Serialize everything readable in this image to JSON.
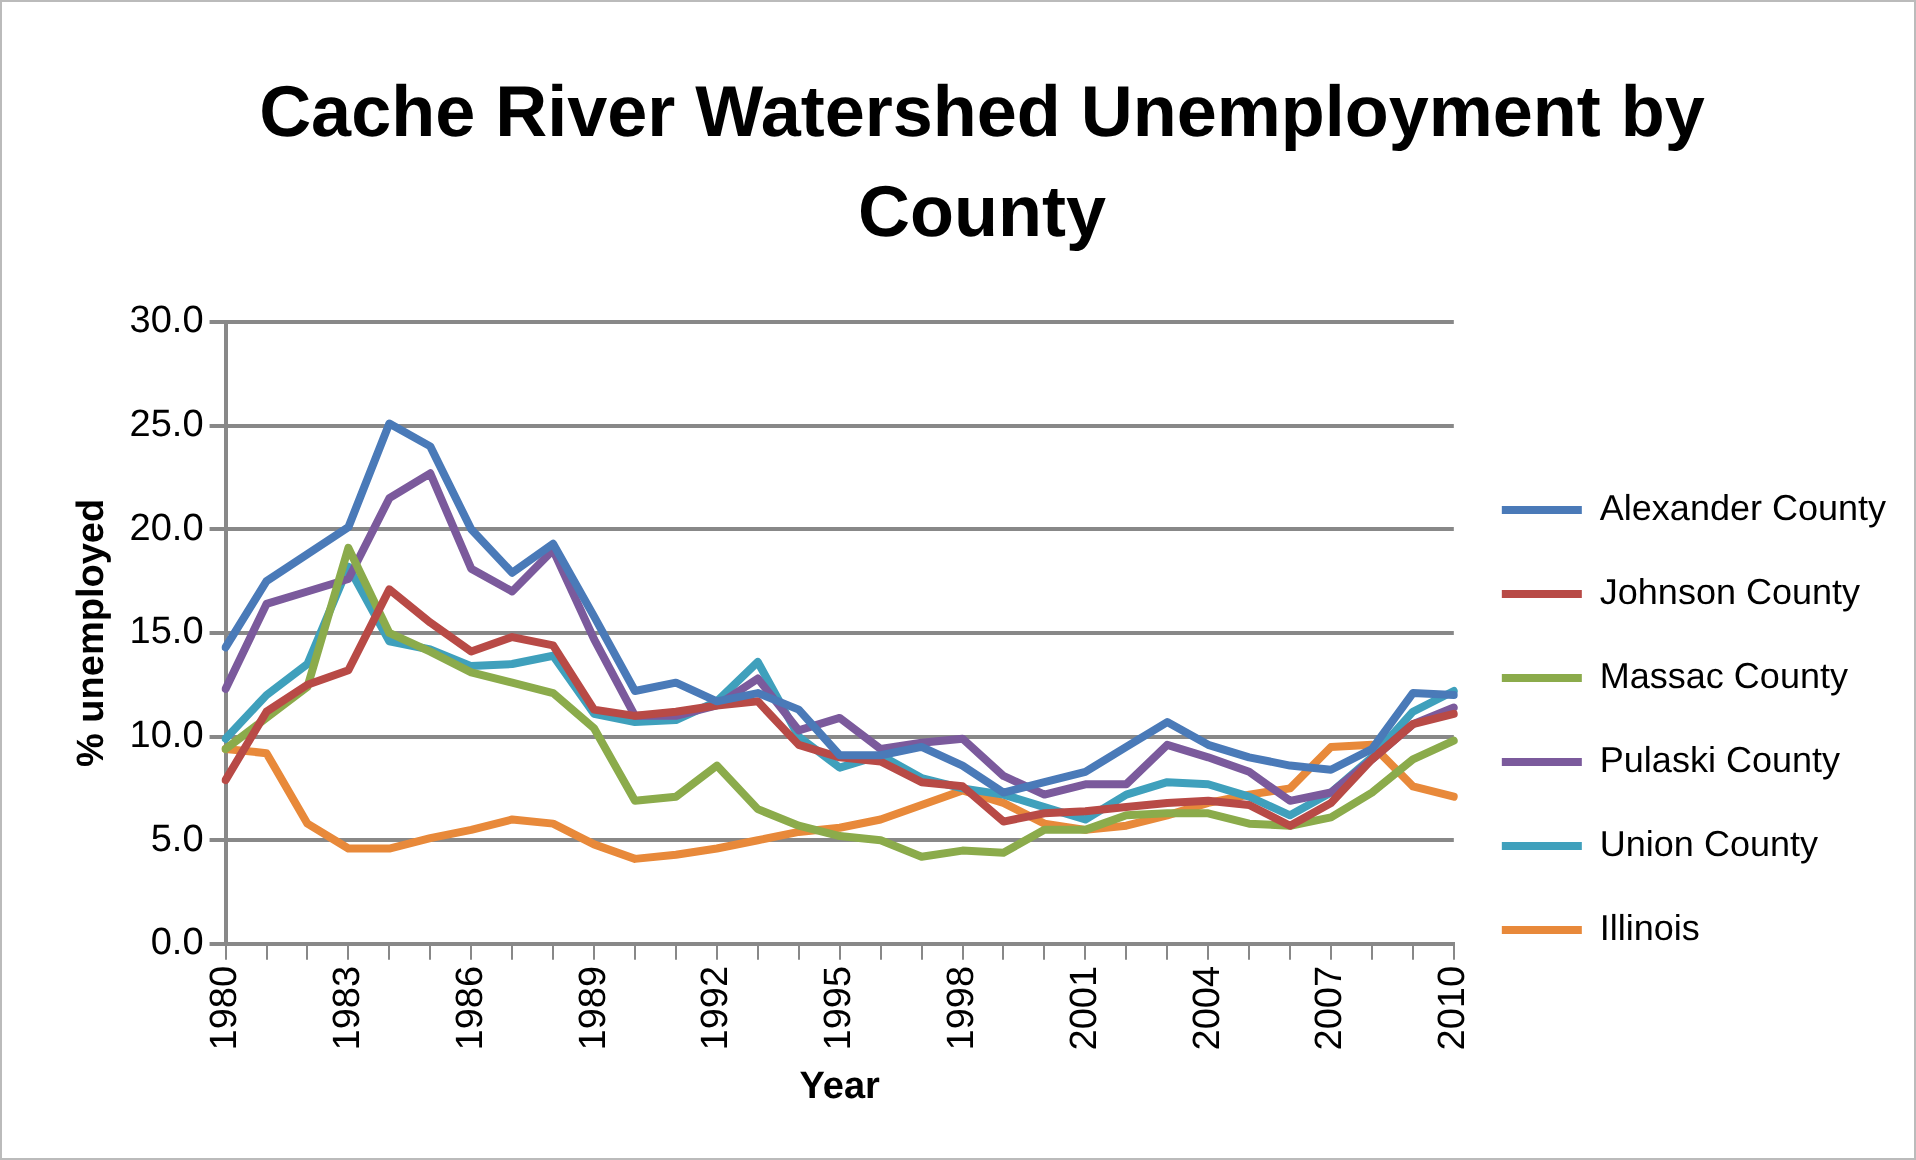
{
  "chart_data": {
    "type": "line",
    "title": "Cache River Watershed Unemployment by County",
    "xlabel": "Year",
    "ylabel": "% unemployed",
    "categories": [
      "1980",
      null,
      null,
      "1983",
      null,
      null,
      "1986",
      null,
      null,
      "1989",
      null,
      null,
      "1992",
      null,
      null,
      "1995",
      null,
      null,
      "1998",
      null,
      null,
      "2001",
      null,
      null,
      "2004",
      null,
      null,
      "2007",
      null,
      null,
      "2010"
    ],
    "series": [
      {
        "name": "Alexander County",
        "color": "#4a7ab8",
        "values": [
          14.3,
          17.5,
          18.8,
          20.1,
          25.1,
          24.0,
          20.0,
          17.9,
          19.3,
          15.8,
          12.2,
          12.6,
          11.7,
          12.1,
          11.3,
          9.1,
          9.1,
          9.5,
          8.6,
          7.3,
          7.8,
          8.3,
          9.5,
          10.7,
          9.6,
          9.0,
          8.6,
          8.4,
          9.4,
          12.1,
          12.0
        ]
      },
      {
        "name": "Johnson County",
        "color": "#b84a46",
        "values": [
          7.9,
          11.2,
          12.5,
          13.2,
          17.1,
          15.5,
          14.1,
          14.8,
          14.4,
          11.3,
          11.0,
          11.2,
          11.5,
          11.7,
          9.6,
          9.0,
          8.8,
          7.8,
          7.6,
          5.9,
          6.3,
          6.4,
          6.6,
          6.8,
          6.9,
          6.7,
          5.7,
          6.8,
          8.9,
          10.6,
          11.1
        ]
      },
      {
        "name": "Massac County",
        "color": "#8bab4b",
        "values": [
          9.4,
          10.9,
          12.4,
          19.1,
          15.0,
          14.1,
          13.1,
          12.6,
          12.1,
          10.4,
          6.9,
          7.1,
          8.6,
          6.5,
          5.7,
          5.2,
          5.0,
          4.2,
          4.5,
          4.4,
          5.5,
          5.5,
          6.2,
          6.3,
          6.3,
          5.8,
          5.7,
          6.1,
          7.3,
          8.9,
          9.8
        ]
      },
      {
        "name": "Pulaski County",
        "color": "#7b5a9c",
        "values": [
          12.3,
          16.4,
          17.0,
          17.6,
          21.5,
          22.7,
          18.1,
          17.0,
          19.0,
          14.7,
          11.0,
          11.0,
          11.5,
          12.8,
          10.3,
          10.9,
          9.4,
          9.7,
          9.9,
          8.1,
          7.2,
          7.7,
          7.7,
          9.6,
          9.0,
          8.3,
          6.9,
          7.3,
          8.9,
          10.6,
          11.4
        ]
      },
      {
        "name": "Union County",
        "color": "#3fa0bc",
        "values": [
          9.9,
          12.0,
          13.5,
          18.2,
          14.6,
          14.2,
          13.4,
          13.5,
          13.9,
          11.1,
          10.7,
          10.8,
          11.7,
          13.6,
          10.0,
          8.5,
          9.1,
          8.0,
          7.5,
          7.2,
          6.6,
          6.0,
          7.2,
          7.8,
          7.7,
          7.1,
          6.2,
          7.3,
          9.0,
          11.2,
          12.2
        ]
      },
      {
        "name": "Illinois",
        "color": "#e8893a",
        "values": [
          9.4,
          9.2,
          5.8,
          4.6,
          4.6,
          5.1,
          5.5,
          6.0,
          5.8,
          4.8,
          4.1,
          4.3,
          4.6,
          5.0,
          5.4,
          5.6,
          6.0,
          6.7,
          7.4,
          6.8,
          5.8,
          5.5,
          5.7,
          6.2,
          6.8,
          7.2,
          7.5,
          9.5,
          9.6,
          7.6,
          7.1
        ]
      }
    ],
    "ylim": [
      0,
      30
    ],
    "yticks": [
      {
        "value": 0,
        "label": "0.0"
      },
      {
        "value": 5,
        "label": "5.0"
      },
      {
        "value": 10,
        "label": "10.0"
      },
      {
        "value": 15,
        "label": "15.0"
      },
      {
        "value": 20,
        "label": "20.0"
      },
      {
        "value": 25,
        "label": "25.0"
      },
      {
        "value": 30,
        "label": "30.0"
      }
    ],
    "grid": "y",
    "legend": "right",
    "marker": "none",
    "line_style": "solid"
  }
}
